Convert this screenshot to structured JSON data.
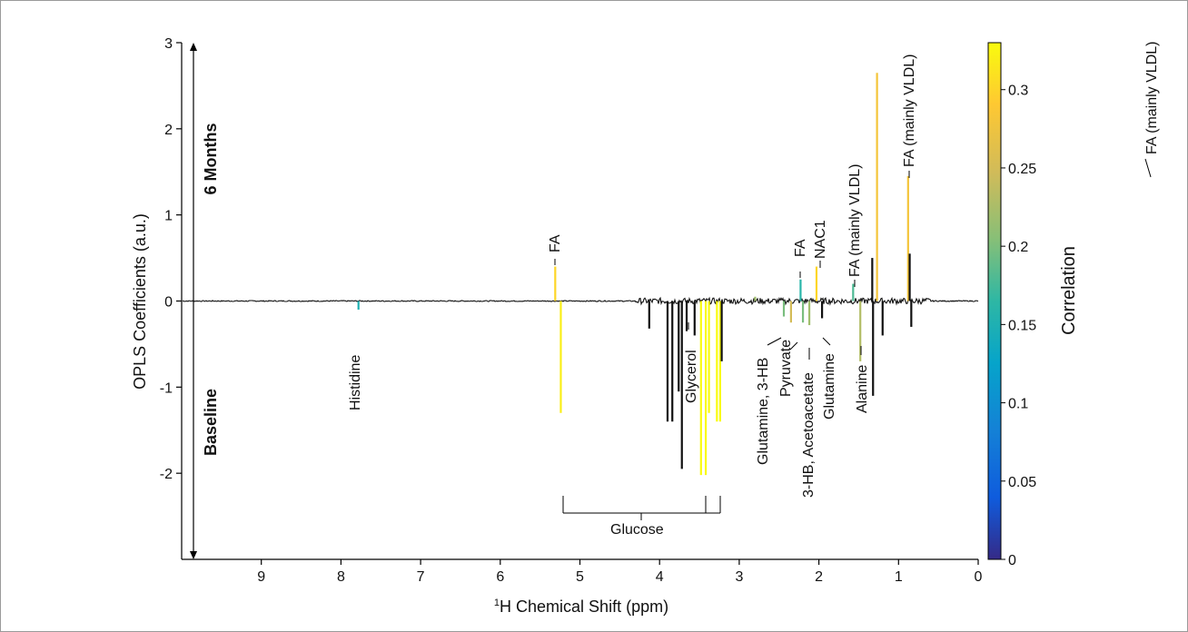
{
  "chart_data": {
    "type": "line",
    "title": "",
    "xlabel_main": "H Chemical Shift (ppm)",
    "xlabel_superscript": "1",
    "ylabel": "OPLS Coefficients (a.u.)",
    "xlim": [
      10,
      0
    ],
    "ylim": [
      -3,
      3
    ],
    "x_ticks": [
      9,
      8,
      7,
      6,
      5,
      4,
      3,
      2,
      1,
      0
    ],
    "y_ticks": [
      3,
      2,
      1,
      0,
      -1,
      -2
    ],
    "direction_labels": {
      "top": "6 Months",
      "bottom": "Baseline"
    },
    "colorbar": {
      "label": "Correlation",
      "range": [
        0,
        0.33
      ],
      "ticks": [
        0,
        0.05,
        0.1,
        0.15,
        0.2,
        0.25,
        0.3
      ],
      "colormap": "parula"
    },
    "peaks": [
      {
        "ppm": 7.78,
        "value": -0.1,
        "correlation": 0.15
      },
      {
        "ppm": 5.31,
        "value": 0.4,
        "correlation": 0.3
      },
      {
        "ppm": 5.24,
        "value": -1.3,
        "correlation": 0.32
      },
      {
        "ppm": 4.13,
        "value": -0.32,
        "correlation": 0.0
      },
      {
        "ppm": 3.9,
        "value": -1.4,
        "correlation": 0.0
      },
      {
        "ppm": 3.84,
        "value": -1.4,
        "correlation": 0.0
      },
      {
        "ppm": 3.76,
        "value": -1.05,
        "correlation": 0.0
      },
      {
        "ppm": 3.72,
        "value": -1.95,
        "correlation": 0.0
      },
      {
        "ppm": 3.66,
        "value": -0.35,
        "correlation": 0.0
      },
      {
        "ppm": 3.56,
        "value": -0.4,
        "correlation": 0.0
      },
      {
        "ppm": 3.48,
        "value": -2.02,
        "correlation": 0.33
      },
      {
        "ppm": 3.42,
        "value": -2.02,
        "correlation": 0.33
      },
      {
        "ppm": 3.38,
        "value": -1.3,
        "correlation": 0.33
      },
      {
        "ppm": 3.28,
        "value": -1.4,
        "correlation": 0.33
      },
      {
        "ppm": 3.24,
        "value": -1.4,
        "correlation": 0.33
      },
      {
        "ppm": 3.22,
        "value": -0.7,
        "correlation": 0.0
      },
      {
        "ppm": 2.8,
        "value": 0.05,
        "correlation": 0.22
      },
      {
        "ppm": 2.44,
        "value": -0.18,
        "correlation": 0.2
      },
      {
        "ppm": 2.35,
        "value": -0.25,
        "correlation": 0.25
      },
      {
        "ppm": 2.23,
        "value": 0.25,
        "correlation": 0.16
      },
      {
        "ppm": 2.2,
        "value": -0.25,
        "correlation": 0.2
      },
      {
        "ppm": 2.12,
        "value": -0.28,
        "correlation": 0.22
      },
      {
        "ppm": 2.03,
        "value": 0.4,
        "correlation": 0.3
      },
      {
        "ppm": 1.96,
        "value": -0.2,
        "correlation": 0.0
      },
      {
        "ppm": 1.57,
        "value": 0.2,
        "correlation": 0.18
      },
      {
        "ppm": 1.48,
        "value": -0.7,
        "correlation": 0.23
      },
      {
        "ppm": 1.33,
        "value": 0.5,
        "correlation": 0.0
      },
      {
        "ppm": 1.32,
        "value": -1.1,
        "correlation": 0.0
      },
      {
        "ppm": 1.27,
        "value": 2.65,
        "correlation": 0.28
      },
      {
        "ppm": 1.2,
        "value": -0.4,
        "correlation": 0.0
      },
      {
        "ppm": 0.88,
        "value": 1.45,
        "correlation": 0.28
      },
      {
        "ppm": 0.86,
        "value": 0.55,
        "correlation": 0.0
      },
      {
        "ppm": 0.84,
        "value": -0.3,
        "correlation": 0.0
      }
    ],
    "annotations": [
      {
        "text": "Histidine",
        "ppm": 7.78
      },
      {
        "text": "FA",
        "ppm": 5.31
      },
      {
        "text": "Glycerol",
        "ppm": 3.64
      },
      {
        "text": "Glucose",
        "ppm": 4.3
      },
      {
        "text": "Glutamine, 3-HB",
        "ppm": 2.46
      },
      {
        "text": "Pyruvate",
        "ppm": 2.37
      },
      {
        "text": "3-HB, Acetoacetate",
        "ppm": 2.26
      },
      {
        "text": "Glutamine",
        "ppm": 2.12
      },
      {
        "text": "FA",
        "ppm": 2.24
      },
      {
        "text": "NAC1",
        "ppm": 2.03
      },
      {
        "text": "FA (mainly VLDL)",
        "ppm": 1.57
      },
      {
        "text": "Alanine",
        "ppm": 1.48
      },
      {
        "text": "FA (mainly VLDL)",
        "ppm": 1.29
      },
      {
        "text": "FA (mainly VLDL)",
        "ppm": 0.88
      }
    ]
  }
}
